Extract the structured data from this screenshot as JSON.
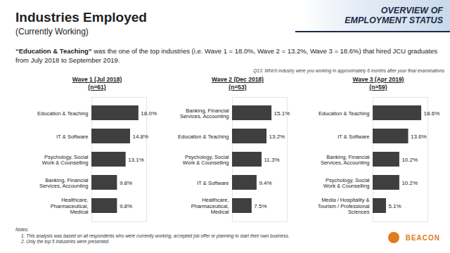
{
  "banner": [
    "OVERVIEW OF",
    "EMPLOYMENT STATUS"
  ],
  "title": "Industries Employed",
  "subtitle": "(Currently Working)",
  "headline": [
    "“Education & Teaching”",
    " was the one of the top industries (i.e. Wave 1 = 18.0%, Wave 2 = 13.2%, Wave 3 = 18.6%) that hired JCU graduates from July 2018 to September 2019."
  ],
  "question": "Q13. Which industry were you working in approximately 6 months after your final examinations",
  "chart_data": [
    {
      "type": "bar",
      "orientation": "horizontal",
      "title": "Wave 1 (Jul 2018)",
      "subtitle": "(n=61)",
      "categories": [
        "Education & Teaching",
        "IT & Software",
        "Psychology, Social Work & Counselling",
        "Banking, Financial Services, Accounting",
        "Healthcare, Pharmaceutical, Medical"
      ],
      "values": [
        18.0,
        14.8,
        13.1,
        9.8,
        9.8
      ],
      "value_labels": [
        "18.0%",
        "14.8%",
        "13.1%",
        "9.8%",
        "9.8%"
      ],
      "data_labels": true,
      "color": "#3f3f3f",
      "xlim": [
        0,
        21
      ],
      "xticks": [],
      "tick_labels": "y"
    },
    {
      "type": "bar",
      "orientation": "horizontal",
      "title": "Wave 2 (Dec 2018)",
      "subtitle": "(n=53)",
      "categories": [
        "Banking, Financial Services, Accounting",
        "Education & Teaching",
        "Psychology, Social Work & Counselling",
        "IT & Software",
        "Healthcare, Pharmaceutical, Medical"
      ],
      "values": [
        15.1,
        13.2,
        11.3,
        9.4,
        7.5
      ],
      "value_labels": [
        "15.1%",
        "13.2%",
        "11.3%",
        "9.4%",
        "7.5%"
      ],
      "data_labels": true,
      "color": "#3f3f3f",
      "xlim": [
        0,
        21
      ],
      "xticks": [],
      "tick_labels": "y"
    },
    {
      "type": "bar",
      "orientation": "horizontal",
      "title": "Wave 3 (Apr 2019)",
      "subtitle": "(n=59)",
      "categories": [
        "Education & Teaching",
        "IT & Software",
        "Banking, Financial Services, Accounting",
        "Psychology, Social Work & Counselling",
        "Media / Hospitality & Tourism / Professional Sciences"
      ],
      "values": [
        18.6,
        13.6,
        10.2,
        10.2,
        5.1
      ],
      "value_labels": [
        "18.6%",
        "13.6%",
        "10.2%",
        "10.2%",
        "5.1%"
      ],
      "data_labels": true,
      "color": "#3f3f3f",
      "xlim": [
        0,
        21
      ],
      "xticks": [],
      "tick_labels": "y"
    }
  ],
  "notes": {
    "heading": "Notes:",
    "items": [
      "1. This analysis was based on all respondents who were currently working, accepted job offer or planning to start their own business.",
      "2. Only the top 5 industries were presented."
    ]
  },
  "logo": "BEACON"
}
